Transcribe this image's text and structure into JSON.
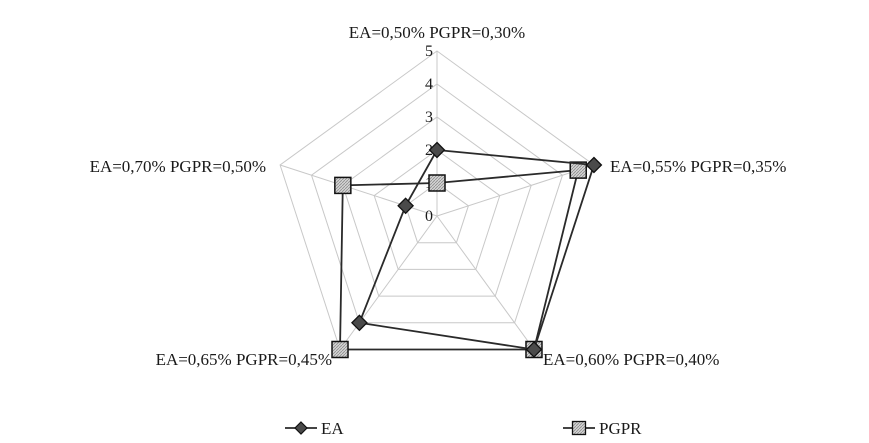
{
  "chart_data": {
    "type": "radar",
    "categories": [
      "EA=0,50% PGPR=0,30%",
      "EA=0,55% PGPR=0,35%",
      "EA=0,60% PGPR=0,40%",
      "EA=0,65% PGPR=0,45%",
      "EA=0,70% PGPR=0,50%"
    ],
    "series": [
      {
        "name": "EA",
        "values": [
          2,
          5,
          5,
          4,
          1
        ],
        "marker": "diamond",
        "marker_color": "#4a4a4a"
      },
      {
        "name": "PGPR",
        "values": [
          1,
          4.5,
          5,
          5,
          3
        ],
        "marker": "square",
        "marker_color": "#c4c4c4"
      }
    ],
    "r_ticks": [
      "0",
      "1",
      "2",
      "3",
      "4",
      "5"
    ],
    "r_range": [
      0,
      5
    ],
    "grid": true,
    "legend_position": "bottom"
  }
}
